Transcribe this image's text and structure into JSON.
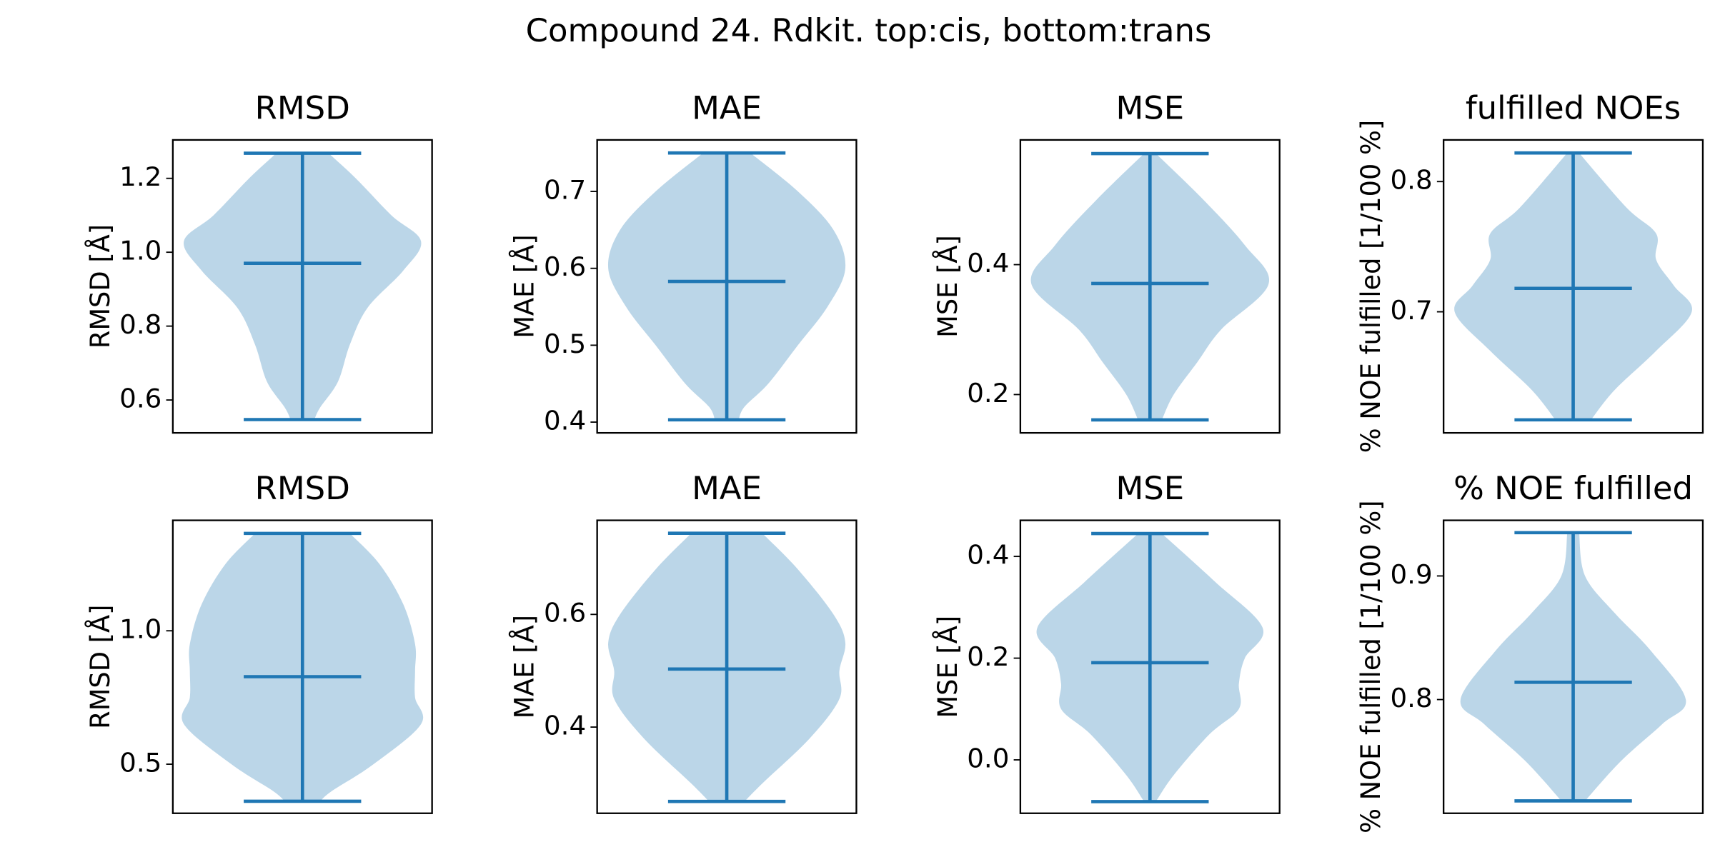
{
  "title": "Compound 24. Rdkit. top:cis, bottom:trans",
  "chart_data": [
    {
      "type": "violin",
      "title": "RMSD",
      "ylabel": "RMSD [Å]",
      "color": "#1f77b4",
      "ylim": [
        0.511,
        1.304
      ],
      "yticks": [
        0.6,
        0.8,
        {
          "value": 1,
          "label": "1.0"
        },
        1.2
      ],
      "min": 0.547,
      "max": 1.268,
      "median": 0.97,
      "kde": {
        "y": [
          0.547,
          0.58,
          0.65,
          0.75,
          0.85,
          0.95,
          1.03,
          1.1,
          1.2,
          1.268
        ],
        "width": [
          0.1,
          0.15,
          0.3,
          0.4,
          0.55,
          0.85,
          1.0,
          0.75,
          0.45,
          0.22
        ]
      }
    },
    {
      "type": "violin",
      "title": "MAE",
      "ylabel": "MAE [Å]",
      "color": "#1f77b4",
      "ylim": [
        0.386,
        0.767
      ],
      "yticks": [
        0.4,
        0.5,
        0.6,
        0.7
      ],
      "min": 0.403,
      "max": 0.75,
      "median": 0.583,
      "kde": {
        "y": [
          0.403,
          0.42,
          0.45,
          0.5,
          0.55,
          0.6,
          0.65,
          0.7,
          0.75
        ],
        "width": [
          0.1,
          0.15,
          0.35,
          0.6,
          0.85,
          1.0,
          0.9,
          0.6,
          0.2
        ]
      }
    },
    {
      "type": "violin",
      "title": "MSE",
      "ylabel": "MSE [Å]",
      "color": "#1f77b4",
      "ylim": [
        0.141,
        0.592
      ],
      "yticks": [
        0.2,
        0.4
      ],
      "min": 0.161,
      "max": 0.571,
      "median": 0.371,
      "kde": {
        "y": [
          0.161,
          0.2,
          0.25,
          0.3,
          0.37,
          0.43,
          0.5,
          0.571
        ],
        "width": [
          0.1,
          0.2,
          0.4,
          0.6,
          1.0,
          0.8,
          0.45,
          0.05
        ]
      }
    },
    {
      "type": "violin",
      "title": "fulfilled NOEs",
      "ylabel": "% NOE fulfilled [1/100 %]",
      "color": "#1f77b4",
      "ylim": [
        0.607,
        0.832
      ],
      "yticks": [
        0.7,
        0.8
      ],
      "min": 0.617,
      "max": 0.822,
      "median": 0.718,
      "kde": {
        "y": [
          0.617,
          0.64,
          0.67,
          0.7,
          0.72,
          0.74,
          0.76,
          0.78,
          0.822
        ],
        "width": [
          0.15,
          0.35,
          0.7,
          1.0,
          0.85,
          0.7,
          0.7,
          0.45,
          0.05
        ]
      }
    },
    {
      "type": "violin",
      "title": "RMSD",
      "ylabel": "RMSD [Å]",
      "color": "#1f77b4",
      "ylim": [
        0.316,
        1.414
      ],
      "yticks": [
        0.5,
        {
          "value": 1,
          "label": "1.0"
        }
      ],
      "min": 0.361,
      "max": 1.365,
      "median": 0.828,
      "kde": {
        "y": [
          0.361,
          0.4,
          0.5,
          0.65,
          0.75,
          0.85,
          0.95,
          1.1,
          1.25,
          1.365
        ],
        "width": [
          0.15,
          0.25,
          0.6,
          1.0,
          0.95,
          0.95,
          0.95,
          0.85,
          0.65,
          0.4
        ]
      }
    },
    {
      "type": "violin",
      "title": "MAE",
      "ylabel": "MAE [Å]",
      "color": "#1f77b4",
      "ylim": [
        0.247,
        0.767
      ],
      "yticks": [
        0.4,
        0.6
      ],
      "min": 0.268,
      "max": 0.744,
      "median": 0.503,
      "kde": {
        "y": [
          0.268,
          0.3,
          0.38,
          0.45,
          0.5,
          0.55,
          0.6,
          0.68,
          0.744
        ],
        "width": [
          0.15,
          0.3,
          0.7,
          0.95,
          0.95,
          1.0,
          0.9,
          0.6,
          0.3
        ]
      }
    },
    {
      "type": "violin",
      "title": "MSE",
      "ylabel": "MSE [Å]",
      "color": "#1f77b4",
      "ylim": [
        -0.105,
        0.471
      ],
      "yticks": [
        {
          "value": 0,
          "label": "0.0"
        },
        0.2,
        0.4
      ],
      "min": -0.082,
      "max": 0.445,
      "median": 0.191,
      "kde": {
        "y": [
          -0.082,
          -0.03,
          0.05,
          0.1,
          0.15,
          0.2,
          0.26,
          0.35,
          0.445
        ],
        "width": [
          0.05,
          0.2,
          0.5,
          0.75,
          0.75,
          0.8,
          0.95,
          0.55,
          0.1
        ]
      }
    },
    {
      "type": "violin",
      "title": "% NOE fulfilled",
      "ylabel": "% NOE fulfilled [1/100 %]",
      "color": "#1f77b4",
      "ylim": [
        0.708,
        0.945
      ],
      "yticks": [
        0.8,
        0.9
      ],
      "min": 0.718,
      "max": 0.935,
      "median": 0.814,
      "kde": {
        "y": [
          0.718,
          0.75,
          0.78,
          0.8,
          0.84,
          0.87,
          0.9,
          0.935
        ],
        "width": [
          0.1,
          0.4,
          0.75,
          0.95,
          0.65,
          0.35,
          0.1,
          0.05
        ]
      }
    }
  ]
}
